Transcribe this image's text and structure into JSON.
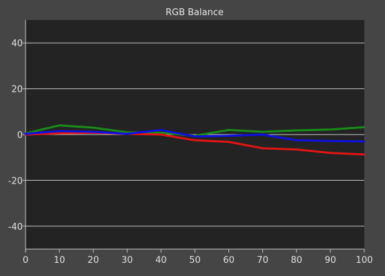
{
  "chart_data": {
    "type": "line",
    "title": "RGB Balance",
    "xlabel": "",
    "ylabel": "",
    "xlim": [
      0,
      100
    ],
    "ylim": [
      -50,
      50
    ],
    "x_ticks": [
      0,
      10,
      20,
      30,
      40,
      50,
      60,
      70,
      80,
      90,
      100
    ],
    "y_ticks": [
      -40,
      -20,
      0,
      20,
      40
    ],
    "grid": true,
    "x": [
      0,
      10,
      20,
      30,
      40,
      50,
      60,
      70,
      80,
      90,
      100
    ],
    "series": [
      {
        "color": "#1a8c1a",
        "values": [
          0.5,
          4.0,
          3.0,
          1.0,
          0.8,
          -0.5,
          2.0,
          1.2,
          1.8,
          2.2,
          3.2
        ]
      },
      {
        "color": "#e01515",
        "values": [
          0.0,
          0.5,
          0.8,
          0.3,
          0.0,
          -2.5,
          -3.2,
          -6.0,
          -6.5,
          -8.0,
          -8.7
        ]
      },
      {
        "color": "#1010e0",
        "values": [
          0.3,
          1.5,
          1.2,
          0.3,
          2.0,
          -0.8,
          -0.5,
          0.0,
          -2.5,
          -2.8,
          -3.0
        ]
      }
    ]
  }
}
